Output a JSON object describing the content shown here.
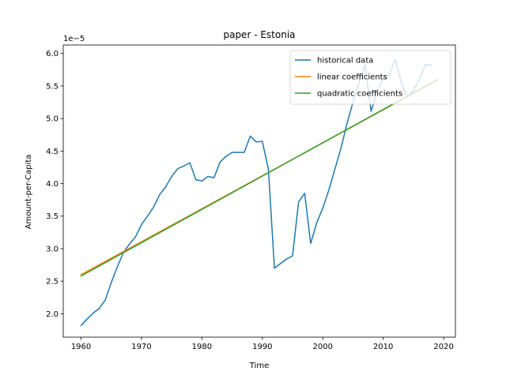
{
  "chart_data": {
    "type": "line",
    "title": "paper - Estonia",
    "xlabel": "Time",
    "ylabel": "Amount-per-Capita",
    "y_offset_label": "1e−5",
    "xlim": [
      1957.05,
      2021.95
    ],
    "ylim": [
      1.64,
      6.13
    ],
    "x_ticks": [
      1960,
      1970,
      1980,
      1990,
      2000,
      2010,
      2020
    ],
    "y_ticks": [
      2.0,
      2.5,
      3.0,
      3.5,
      4.0,
      4.5,
      5.0,
      5.5,
      6.0
    ],
    "y_tick_labels": [
      "2.0",
      "2.5",
      "3.0",
      "3.5",
      "4.0",
      "4.5",
      "5.0",
      "5.5",
      "6.0"
    ],
    "legend_placement": "top-right",
    "grid": false,
    "series": [
      {
        "name": "historical data",
        "color": "#1f77b4",
        "x": [
          1960,
          1961,
          1962,
          1963,
          1964,
          1965,
          1966,
          1967,
          1968,
          1969,
          1970,
          1971,
          1972,
          1973,
          1974,
          1975,
          1976,
          1977,
          1978,
          1979,
          1980,
          1981,
          1982,
          1983,
          1984,
          1985,
          1986,
          1987,
          1988,
          1989,
          1990,
          1991,
          1992,
          1993,
          1994,
          1995,
          1996,
          1997,
          1998,
          1999,
          2000,
          2001,
          2002,
          2003,
          2004,
          2005,
          2006,
          2007,
          2008,
          2009,
          2010,
          2011,
          2012,
          2013,
          2014,
          2015,
          2016,
          2017,
          2018
        ],
        "y": [
          1.82,
          1.92,
          2.01,
          2.08,
          2.21,
          2.48,
          2.72,
          2.94,
          3.07,
          3.18,
          3.37,
          3.5,
          3.64,
          3.83,
          3.95,
          4.11,
          4.23,
          4.27,
          4.32,
          4.06,
          4.04,
          4.11,
          4.09,
          4.33,
          4.42,
          4.48,
          4.48,
          4.48,
          4.73,
          4.64,
          4.65,
          4.22,
          2.7,
          2.77,
          2.84,
          2.89,
          3.72,
          3.85,
          3.08,
          3.4,
          3.62,
          3.9,
          4.22,
          4.54,
          4.92,
          5.25,
          5.55,
          5.83,
          5.11,
          5.42,
          5.62,
          5.67,
          5.91,
          5.55,
          5.33,
          5.43,
          5.61,
          5.83,
          5.82
        ]
      },
      {
        "name": "linear coefficients",
        "color": "#ff7f0e",
        "x": [
          1960,
          2019
        ],
        "y": [
          2.6,
          5.59
        ]
      },
      {
        "name": "quadratic coefficients",
        "color": "#2ca02c",
        "x": [
          1960,
          2019
        ],
        "y": [
          2.58,
          5.6
        ]
      }
    ]
  }
}
